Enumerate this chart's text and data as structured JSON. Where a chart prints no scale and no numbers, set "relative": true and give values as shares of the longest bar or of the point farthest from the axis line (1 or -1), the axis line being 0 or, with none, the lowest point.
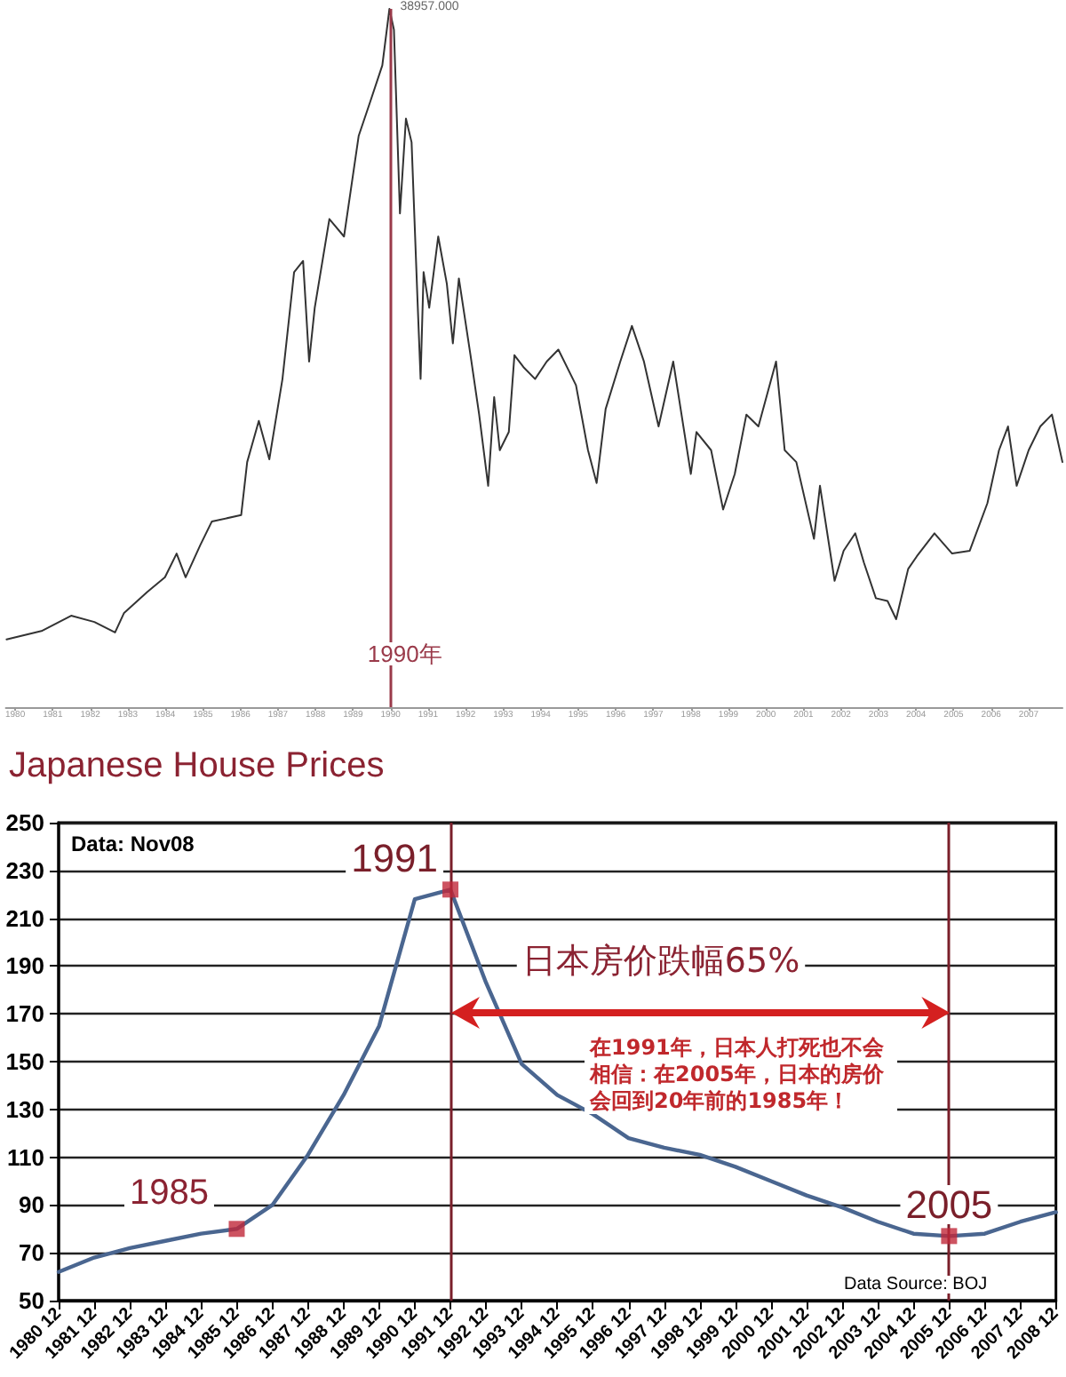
{
  "chart_data": [
    {
      "type": "line",
      "relative": true,
      "xlim": [
        1979.75,
        2007.9
      ],
      "xticks": [
        1980,
        1981,
        1982,
        1983,
        1984,
        1985,
        1986,
        1987,
        1988,
        1989,
        1990,
        1991,
        1992,
        1993,
        1994,
        1995,
        1996,
        1997,
        1998,
        1999,
        2000,
        2001,
        2002,
        2003,
        2004,
        2005,
        2006,
        2007
      ],
      "marker": "none",
      "series": [
        {
          "color": "#333333",
          "x": [
            1979.77,
            1980.7,
            1981.49,
            1982.11,
            1982.66,
            1982.9,
            1983.52,
            1983.99,
            1984.3,
            1984.54,
            1984.93,
            1985.24,
            1986.02,
            1986.18,
            1986.49,
            1986.77,
            1987.12,
            1987.43,
            1987.67,
            1987.83,
            1987.98,
            1988.37,
            1988.76,
            1988.92,
            1989.15,
            1989.47,
            1989.78,
            1989.97,
            1990.09,
            1990.25,
            1990.41,
            1990.56,
            1990.72,
            1990.8,
            1990.88,
            1991.03,
            1991.27,
            1991.5,
            1991.66,
            1991.82,
            1992.13,
            1992.36,
            1992.6,
            1992.76,
            1992.91,
            1993.15,
            1993.3,
            1993.54,
            1993.85,
            1994.16,
            1994.47,
            1994.94,
            1995.26,
            1995.49,
            1995.73,
            1996.12,
            1996.43,
            1996.75,
            1997.14,
            1997.53,
            1998.0,
            1998.15,
            1998.54,
            1998.86,
            1999.17,
            1999.48,
            1999.8,
            2000.27,
            2000.5,
            2000.81,
            2001.28,
            2001.44,
            2001.83,
            2002.07,
            2002.38,
            2002.61,
            2002.93,
            2003.24,
            2003.47,
            2003.79,
            2004.02,
            2004.49,
            2004.96,
            2005.43,
            2005.9,
            2006.21,
            2006.45,
            2006.68,
            2007.0,
            2007.31,
            2007.62,
            2007.9
          ],
          "values": [
            0.097,
            0.109,
            0.131,
            0.122,
            0.107,
            0.135,
            0.165,
            0.186,
            0.22,
            0.186,
            0.232,
            0.266,
            0.275,
            0.351,
            0.41,
            0.355,
            0.47,
            0.623,
            0.639,
            0.495,
            0.572,
            0.699,
            0.674,
            0.733,
            0.818,
            0.869,
            0.919,
            1,
            0.97,
            0.707,
            0.843,
            0.809,
            0.58,
            0.47,
            0.623,
            0.572,
            0.674,
            0.606,
            0.521,
            0.614,
            0.504,
            0.419,
            0.317,
            0.444,
            0.368,
            0.394,
            0.504,
            0.487,
            0.47,
            0.495,
            0.512,
            0.461,
            0.368,
            0.321,
            0.427,
            0.495,
            0.546,
            0.495,
            0.402,
            0.495,
            0.334,
            0.394,
            0.368,
            0.283,
            0.334,
            0.419,
            0.402,
            0.495,
            0.368,
            0.351,
            0.241,
            0.317,
            0.181,
            0.224,
            0.249,
            0.207,
            0.156,
            0.152,
            0.126,
            0.198,
            0.216,
            0.249,
            0.22,
            0.224,
            0.292,
            0.368,
            0.402,
            0.317,
            0.368,
            0.402,
            0.419,
            0.351
          ]
        }
      ],
      "ref_lines": [
        {
          "axis": "x",
          "value": 1990,
          "label": "1990年",
          "color": "#9a3a4a"
        }
      ],
      "annotations": [
        {
          "text": "38957.000",
          "x": 1989.97,
          "y": 1
        }
      ]
    },
    {
      "type": "line",
      "title": "Japanese House Prices",
      "categories": [
        "1980 12",
        "1981 12",
        "1982 12",
        "1983 12",
        "1984 12",
        "1985 12",
        "1986 12",
        "1987 12",
        "1988 12",
        "1989 12",
        "1990 12",
        "1991 12",
        "1992 12",
        "1993 12",
        "1994 12",
        "1995 12",
        "1996 12",
        "1997 12",
        "1998 12",
        "1999 12",
        "2000 12",
        "2001 12",
        "2002 12",
        "2003 12",
        "2004 12",
        "2005 12",
        "2006 12",
        "2007 12",
        "2008 12"
      ],
      "ylim": [
        50,
        250
      ],
      "yticks": [
        50,
        70,
        90,
        110,
        130,
        150,
        170,
        190,
        210,
        230,
        250
      ],
      "grid": "y",
      "marker": "none",
      "series": [
        {
          "color": "#4a6690",
          "values": [
            62,
            68,
            72,
            75,
            78,
            80,
            90,
            111,
            136,
            165,
            218,
            222,
            183,
            149,
            136,
            128,
            118,
            114,
            111,
            106,
            100,
            94,
            89,
            83,
            78,
            77,
            78,
            83,
            87
          ]
        },
        {
          "type": "scatter",
          "marker": "square",
          "color": "#c0283a",
          "x": [
            "1985 12",
            "1991 12",
            "2005 12"
          ],
          "values": [
            80,
            222,
            77
          ]
        }
      ],
      "ref_lines": [
        {
          "axis": "x",
          "value": "1991 12",
          "label": "1991",
          "color": "#7a1f2a"
        },
        {
          "axis": "x",
          "value": "2005 12",
          "label": "2005",
          "color": "#7a1f2a"
        }
      ],
      "annotations": [
        "Data: Nov08",
        {
          "text": "1985",
          "x": "1985 12",
          "y": 80
        },
        "日本房价跌幅65%",
        "在1991年，日本人打死也不会相信：在2005年，日本的房价会回到20年前的1985年！",
        "Data Source: BOJ"
      ]
    }
  ]
}
